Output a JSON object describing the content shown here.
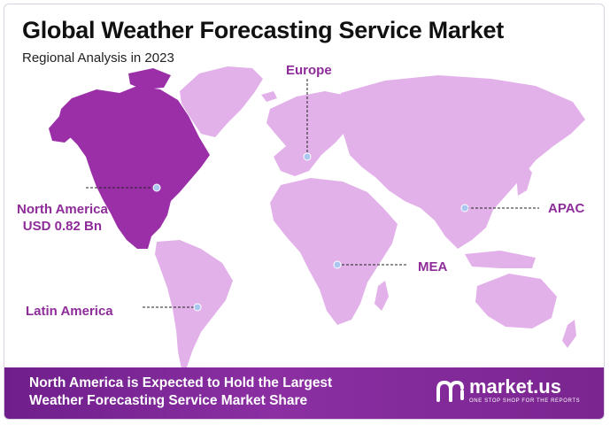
{
  "header": {
    "title": "Global Weather Forecasting Service Market",
    "subtitle": "Regional Analysis in 2023"
  },
  "regions": {
    "europe": {
      "label": "Europe"
    },
    "north_america": {
      "label": "North America",
      "value": "USD 0.82 Bn"
    },
    "apac": {
      "label": "APAC"
    },
    "mea": {
      "label": "MEA"
    },
    "latin_america": {
      "label": "Latin America"
    }
  },
  "footer": {
    "line1": "North America is Expected to Hold the Largest",
    "line2": "Weather Forecasting Service Market Share"
  },
  "brand": {
    "name": "market.us",
    "tagline": "ONE STOP SHOP FOR THE REPORTS"
  },
  "colors": {
    "highlight_region": "#9b2fa8",
    "other_regions": "#e3b1ea",
    "label": "#8e2c9a",
    "footer": "#7a2590",
    "marker": "#a9c7f0"
  }
}
